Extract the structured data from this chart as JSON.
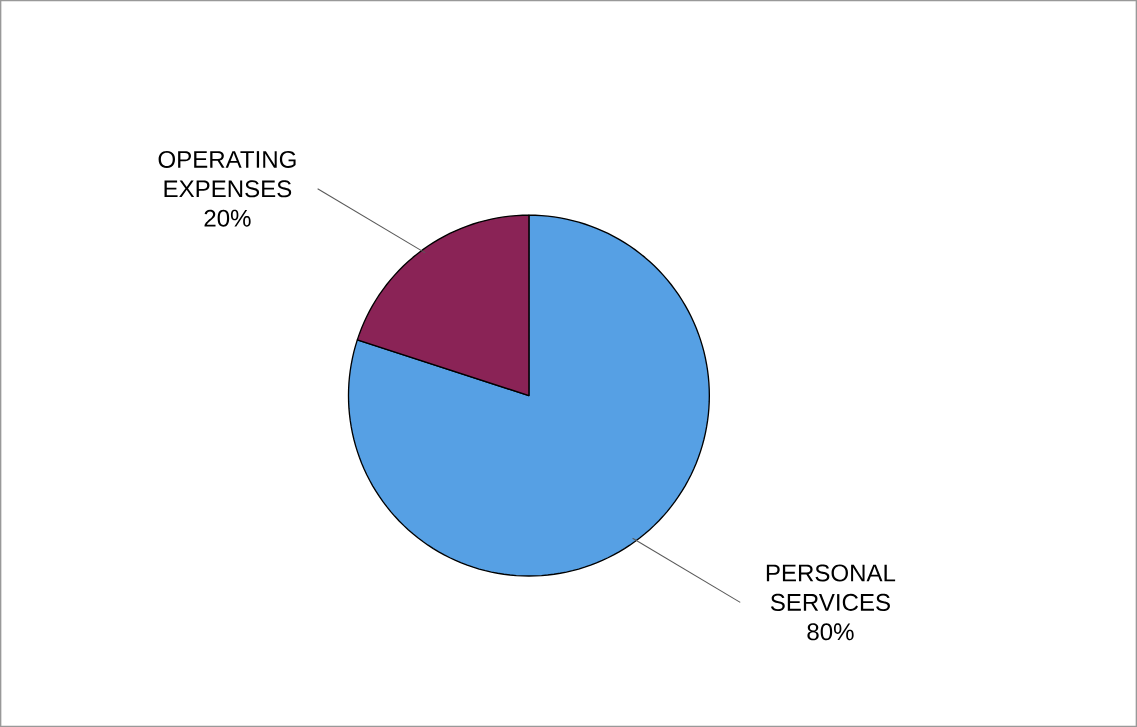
{
  "chart_data": {
    "type": "pie",
    "categories": [
      "PERSONAL SERVICES",
      "OPERATING EXPENSES"
    ],
    "values": [
      80,
      20
    ],
    "colors": [
      "#56a0e4",
      "#8a2356"
    ],
    "value_labels": [
      "80%",
      "20%"
    ]
  }
}
